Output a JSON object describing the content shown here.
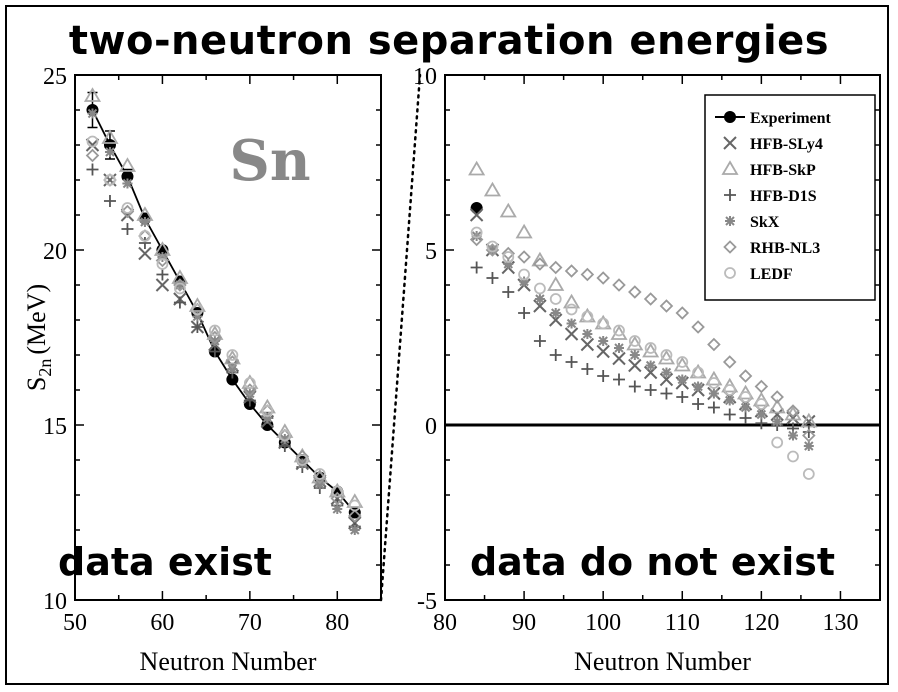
{
  "title": "two-neutron separation energies",
  "element_label": "Sn",
  "y_label_main": "S",
  "y_label_sub": "2n",
  "y_label_unit": "(MeV)",
  "colors": {
    "experiment": "#000000",
    "HFB-SLy4": "#666666",
    "HFB-SkP": "#aaaaaa",
    "HFB-D1S": "#555555",
    "SkX": "#888888",
    "RHB-NL3": "#999999",
    "LEDF": "#bbbbbb"
  },
  "chart_data": [
    {
      "type": "scatter",
      "panel": "left",
      "xlabel": "Neutron Number",
      "ylabel": "S2n (MeV)",
      "xlim": [
        50,
        85
      ],
      "ylim": [
        10,
        25
      ],
      "xticks": [
        50,
        60,
        70,
        80
      ],
      "yticks": [
        10,
        15,
        20,
        25
      ],
      "annotation": "data exist",
      "series": [
        {
          "name": "Experiment",
          "marker": "filled-circle",
          "line": true,
          "points": [
            [
              52,
              24.0
            ],
            [
              54,
              23.0
            ],
            [
              56,
              22.1
            ],
            [
              58,
              20.9
            ],
            [
              60,
              20.0
            ],
            [
              62,
              19.1
            ],
            [
              64,
              18.2
            ],
            [
              66,
              17.1
            ],
            [
              68,
              16.3
            ],
            [
              70,
              15.6
            ],
            [
              72,
              15.0
            ],
            [
              74,
              14.5
            ],
            [
              76,
              14.0
            ],
            [
              78,
              13.5
            ],
            [
              80,
              13.1
            ],
            [
              82,
              12.5
            ]
          ],
          "errors": [
            0.5,
            0.4,
            0.2,
            0,
            0,
            0,
            0,
            0,
            0,
            0,
            0,
            0,
            0,
            0,
            0,
            0
          ]
        },
        {
          "name": "HFB-SLy4",
          "marker": "x",
          "points": [
            [
              52,
              23.0
            ],
            [
              54,
              22.0
            ],
            [
              56,
              21.0
            ],
            [
              58,
              19.9
            ],
            [
              60,
              19.0
            ],
            [
              62,
              18.6
            ],
            [
              64,
              17.8
            ],
            [
              66,
              17.3
            ],
            [
              68,
              16.7
            ],
            [
              70,
              15.8
            ],
            [
              72,
              15.1
            ],
            [
              74,
              14.5
            ],
            [
              76,
              13.9
            ],
            [
              78,
              13.4
            ],
            [
              80,
              12.9
            ],
            [
              82,
              12.2
            ]
          ]
        },
        {
          "name": "HFB-SkP",
          "marker": "triangle",
          "points": [
            [
              52,
              24.4
            ],
            [
              54,
              23.2
            ],
            [
              56,
              22.4
            ],
            [
              58,
              21.0
            ],
            [
              60,
              20.0
            ],
            [
              62,
              19.2
            ],
            [
              64,
              18.4
            ],
            [
              66,
              17.6
            ],
            [
              68,
              16.9
            ],
            [
              70,
              16.2
            ],
            [
              72,
              15.5
            ],
            [
              74,
              14.8
            ],
            [
              76,
              14.1
            ],
            [
              78,
              13.5
            ],
            [
              80,
              13.1
            ],
            [
              82,
              12.8
            ]
          ]
        },
        {
          "name": "HFB-D1S",
          "marker": "plus",
          "points": [
            [
              52,
              22.3
            ],
            [
              54,
              21.4
            ],
            [
              56,
              20.6
            ],
            [
              58,
              20.2
            ],
            [
              60,
              19.3
            ],
            [
              62,
              18.5
            ],
            [
              64,
              17.8
            ],
            [
              66,
              17.1
            ],
            [
              68,
              16.5
            ],
            [
              70,
              15.7
            ],
            [
              72,
              15.2
            ],
            [
              74,
              14.4
            ],
            [
              76,
              13.8
            ],
            [
              78,
              13.2
            ],
            [
              80,
              12.7
            ],
            [
              82,
              12.1
            ]
          ]
        },
        {
          "name": "SkX",
          "marker": "asterisk",
          "points": [
            [
              52,
              23.9
            ],
            [
              54,
              22.8
            ],
            [
              56,
              21.9
            ],
            [
              58,
              20.8
            ],
            [
              60,
              19.8
            ],
            [
              62,
              19.0
            ],
            [
              64,
              18.1
            ],
            [
              66,
              17.4
            ],
            [
              68,
              16.6
            ],
            [
              70,
              15.9
            ],
            [
              72,
              15.2
            ],
            [
              74,
              14.6
            ],
            [
              76,
              13.9
            ],
            [
              78,
              13.3
            ],
            [
              80,
              12.6
            ],
            [
              82,
              12.0
            ]
          ]
        },
        {
          "name": "RHB-NL3",
          "marker": "diamond",
          "points": [
            [
              52,
              22.7
            ],
            [
              54,
              22.0
            ],
            [
              56,
              21.1
            ],
            [
              58,
              20.4
            ],
            [
              60,
              19.7
            ],
            [
              62,
              19.0
            ],
            [
              64,
              18.3
            ],
            [
              66,
              17.5
            ],
            [
              68,
              16.8
            ],
            [
              70,
              16.0
            ],
            [
              72,
              15.4
            ],
            [
              74,
              14.7
            ],
            [
              76,
              14.1
            ],
            [
              78,
              13.5
            ],
            [
              80,
              12.9
            ],
            [
              82,
              12.4
            ]
          ]
        },
        {
          "name": "LEDF",
          "marker": "circle",
          "points": [
            [
              52,
              23.1
            ],
            [
              54,
              22.0
            ],
            [
              56,
              21.2
            ],
            [
              58,
              20.4
            ],
            [
              60,
              19.6
            ],
            [
              62,
              18.9
            ],
            [
              64,
              18.3
            ],
            [
              66,
              17.7
            ],
            [
              68,
              17.0
            ],
            [
              70,
              16.2
            ],
            [
              72,
              15.4
            ],
            [
              74,
              14.7
            ],
            [
              76,
              14.0
            ],
            [
              78,
              13.6
            ],
            [
              80,
              13.1
            ],
            [
              82,
              12.7
            ]
          ]
        }
      ]
    },
    {
      "type": "scatter",
      "panel": "right",
      "xlabel": "Neutron Number",
      "ylabel": "",
      "xlim": [
        80,
        135
      ],
      "ylim": [
        -5,
        10
      ],
      "xticks": [
        80,
        90,
        100,
        110,
        120,
        130
      ],
      "yticks": [
        -5,
        0,
        5,
        10
      ],
      "zero_line": true,
      "annotation": "data do not exist",
      "legend_position": "top-right",
      "series": [
        {
          "name": "Experiment",
          "marker": "filled-circle",
          "points": [
            [
              84,
              6.2
            ]
          ]
        },
        {
          "name": "HFB-SLy4",
          "marker": "x",
          "points": [
            [
              84,
              6.0
            ],
            [
              86,
              5.0
            ],
            [
              88,
              4.5
            ],
            [
              90,
              4.0
            ],
            [
              92,
              3.4
            ],
            [
              94,
              3.0
            ],
            [
              96,
              2.6
            ],
            [
              98,
              2.3
            ],
            [
              100,
              2.1
            ],
            [
              102,
              1.9
            ],
            [
              104,
              1.7
            ],
            [
              106,
              1.5
            ],
            [
              108,
              1.3
            ],
            [
              110,
              1.2
            ],
            [
              112,
              1.0
            ],
            [
              114,
              0.9
            ],
            [
              116,
              0.8
            ],
            [
              118,
              0.6
            ],
            [
              120,
              0.4
            ],
            [
              122,
              0.3
            ],
            [
              124,
              0.2
            ],
            [
              126,
              0.1
            ]
          ]
        },
        {
          "name": "HFB-SkP",
          "marker": "triangle",
          "points": [
            [
              84,
              7.3
            ],
            [
              86,
              6.7
            ],
            [
              88,
              6.1
            ],
            [
              90,
              5.5
            ],
            [
              92,
              4.7
            ],
            [
              94,
              4.0
            ],
            [
              96,
              3.5
            ],
            [
              98,
              3.1
            ],
            [
              100,
              2.9
            ],
            [
              102,
              2.6
            ],
            [
              104,
              2.3
            ],
            [
              106,
              2.1
            ],
            [
              108,
              1.9
            ],
            [
              110,
              1.7
            ],
            [
              112,
              1.5
            ],
            [
              114,
              1.3
            ],
            [
              116,
              1.1
            ],
            [
              118,
              0.9
            ],
            [
              120,
              0.7
            ],
            [
              122,
              0.5
            ],
            [
              124,
              0.3
            ],
            [
              126,
              0.1
            ]
          ]
        },
        {
          "name": "HFB-D1S",
          "marker": "plus",
          "points": [
            [
              84,
              4.5
            ],
            [
              86,
              4.2
            ],
            [
              88,
              3.8
            ],
            [
              90,
              3.2
            ],
            [
              92,
              2.4
            ],
            [
              94,
              2.0
            ],
            [
              96,
              1.8
            ],
            [
              98,
              1.6
            ],
            [
              100,
              1.4
            ],
            [
              102,
              1.3
            ],
            [
              104,
              1.1
            ],
            [
              106,
              1.0
            ],
            [
              108,
              0.9
            ],
            [
              110,
              0.8
            ],
            [
              112,
              0.6
            ],
            [
              114,
              0.5
            ],
            [
              116,
              0.3
            ],
            [
              118,
              0.2
            ],
            [
              120,
              0.05
            ],
            [
              122,
              0.0
            ],
            [
              124,
              -0.1
            ],
            [
              126,
              -0.2
            ]
          ]
        },
        {
          "name": "SkX",
          "marker": "asterisk",
          "points": [
            [
              84,
              5.4
            ],
            [
              86,
              5.0
            ],
            [
              88,
              4.6
            ],
            [
              90,
              4.1
            ],
            [
              92,
              3.6
            ],
            [
              94,
              3.2
            ],
            [
              96,
              2.9
            ],
            [
              98,
              2.6
            ],
            [
              100,
              2.4
            ],
            [
              102,
              2.2
            ],
            [
              104,
              2.0
            ],
            [
              106,
              1.7
            ],
            [
              108,
              1.5
            ],
            [
              110,
              1.3
            ],
            [
              112,
              1.1
            ],
            [
              114,
              0.9
            ],
            [
              116,
              0.7
            ],
            [
              118,
              0.5
            ],
            [
              120,
              0.3
            ],
            [
              122,
              0.1
            ],
            [
              124,
              -0.3
            ],
            [
              126,
              -0.6
            ]
          ]
        },
        {
          "name": "RHB-NL3",
          "marker": "diamond",
          "points": [
            [
              84,
              5.3
            ],
            [
              86,
              5.0
            ],
            [
              88,
              4.9
            ],
            [
              90,
              4.8
            ],
            [
              92,
              4.6
            ],
            [
              94,
              4.5
            ],
            [
              96,
              4.4
            ],
            [
              98,
              4.3
            ],
            [
              100,
              4.2
            ],
            [
              102,
              4.0
            ],
            [
              104,
              3.8
            ],
            [
              106,
              3.6
            ],
            [
              108,
              3.4
            ],
            [
              110,
              3.2
            ],
            [
              112,
              2.8
            ],
            [
              114,
              2.3
            ],
            [
              116,
              1.8
            ],
            [
              118,
              1.4
            ],
            [
              120,
              1.1
            ],
            [
              122,
              0.8
            ],
            [
              124,
              0.4
            ],
            [
              126,
              -0.3
            ]
          ]
        },
        {
          "name": "LEDF",
          "marker": "circle",
          "points": [
            [
              84,
              5.5
            ],
            [
              86,
              5.1
            ],
            [
              88,
              4.8
            ],
            [
              90,
              4.3
            ],
            [
              92,
              3.9
            ],
            [
              94,
              3.6
            ],
            [
              96,
              3.3
            ],
            [
              98,
              3.1
            ],
            [
              100,
              2.9
            ],
            [
              102,
              2.7
            ],
            [
              104,
              2.4
            ],
            [
              106,
              2.2
            ],
            [
              108,
              2.0
            ],
            [
              110,
              1.8
            ],
            [
              112,
              1.5
            ],
            [
              114,
              1.2
            ],
            [
              116,
              1.0
            ],
            [
              118,
              0.8
            ],
            [
              120,
              0.6
            ],
            [
              122,
              -0.5
            ],
            [
              124,
              -0.9
            ],
            [
              126,
              -1.4
            ]
          ]
        }
      ]
    }
  ]
}
